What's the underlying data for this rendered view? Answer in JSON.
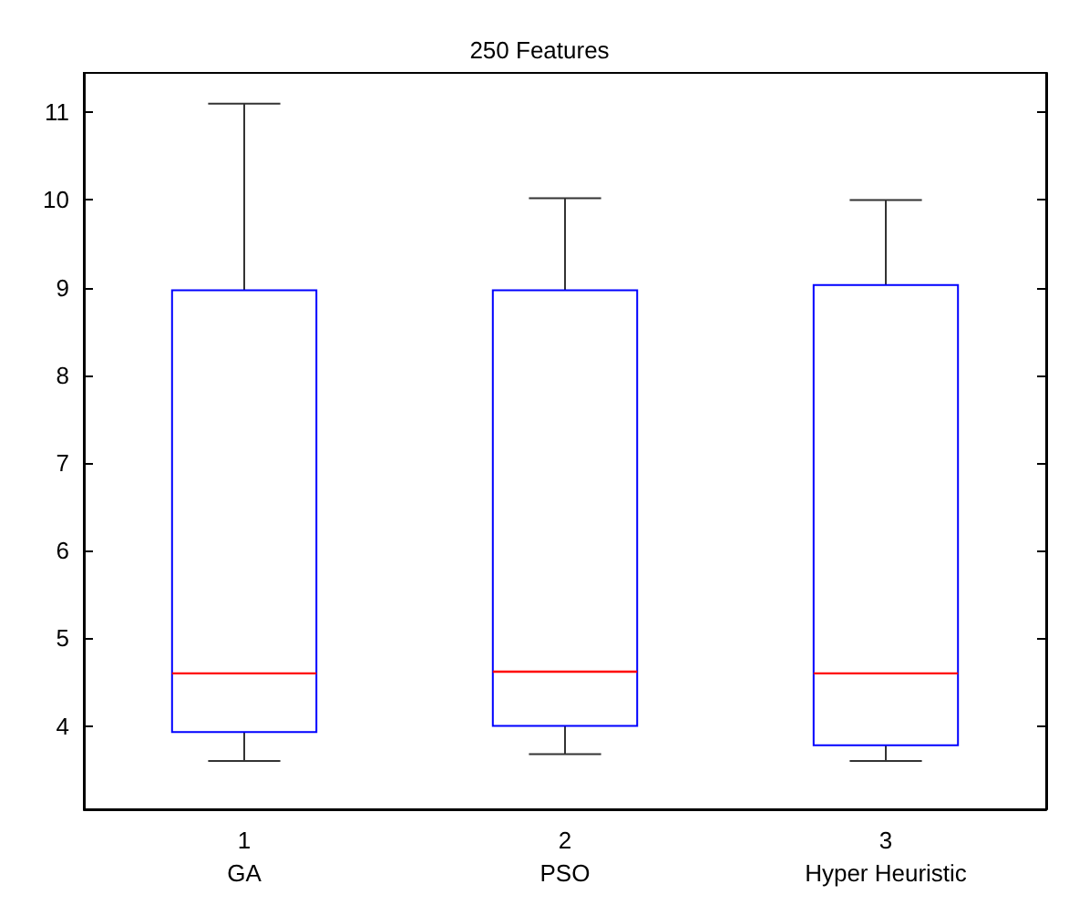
{
  "chart_data": {
    "type": "box",
    "title": "250 Features",
    "categories": [
      "1\nGA",
      "2\nPSO",
      "3\nHyper Heuristic"
    ],
    "series": [
      {
        "color": "#0000ff",
        "boxes": [
          {
            "low": 3.6,
            "q1": 3.93,
            "median": 4.6,
            "q3": 8.97,
            "high": 11.1
          },
          {
            "low": 3.68,
            "q1": 4.0,
            "median": 4.62,
            "q3": 8.97,
            "high": 10.02
          },
          {
            "low": 3.6,
            "q1": 3.78,
            "median": 4.6,
            "q3": 9.03,
            "high": 10.0
          }
        ]
      }
    ],
    "ylim": [
      3.05,
      11.45
    ],
    "yticks": [
      4,
      5,
      6,
      7,
      8,
      9,
      10,
      11
    ],
    "grid": false
  }
}
